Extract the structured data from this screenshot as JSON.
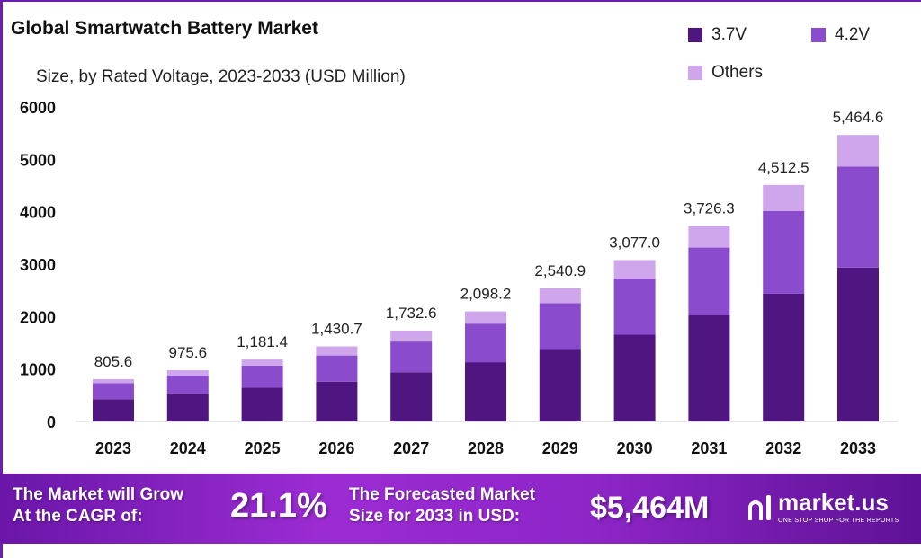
{
  "title": "Global Smartwatch Battery Market",
  "subtitle": "Size, by Rated Voltage, 2023-2033 (USD Million)",
  "chart_data": {
    "type": "bar",
    "stacked": true,
    "title": "Global Smartwatch Battery Market",
    "subtitle": "Size, by Rated Voltage, 2023-2033 (USD Million)",
    "categories": [
      "2023",
      "2024",
      "2025",
      "2026",
      "2027",
      "2028",
      "2029",
      "2030",
      "2031",
      "2032",
      "2033"
    ],
    "series": [
      {
        "name": "3.7V",
        "color": "#4f1580",
        "values": [
          423,
          537,
          644,
          758,
          938,
          1130,
          1380,
          1654,
          2023,
          2435,
          2934
        ]
      },
      {
        "name": "4.2V",
        "color": "#8a4bcc",
        "values": [
          306,
          341,
          421,
          500,
          586,
          735,
          874,
          1072,
          1293,
          1580,
          1928
        ]
      },
      {
        "name": "Others",
        "color": "#cfa6ec",
        "values": [
          77,
          98,
          116,
          173,
          209,
          233,
          287,
          351,
          410,
          497,
          603
        ]
      }
    ],
    "totals": [
      "805.6",
      "975.6",
      "1,181.4",
      "1,430.7",
      "1,732.6",
      "2,098.2",
      "2,540.9",
      "3,077.0",
      "3,726.3",
      "4,512.5",
      "5,464.6"
    ],
    "yticks": [
      "0",
      "1000",
      "2000",
      "3000",
      "4000",
      "5000",
      "6000"
    ],
    "ylim": [
      0,
      6000
    ],
    "grid": false,
    "legend": "top-right"
  },
  "banner": {
    "cagr_label_1": "The Market will Grow",
    "cagr_label_2": "At the CAGR of:",
    "cagr_value": "21.1%",
    "forecast_label_1": "The Forecasted Market",
    "forecast_label_2": "Size for 2033 in USD:",
    "forecast_value": "$5,464M",
    "brand": "market.us",
    "brand_tagline": "ONE STOP SHOP FOR THE REPORTS"
  }
}
